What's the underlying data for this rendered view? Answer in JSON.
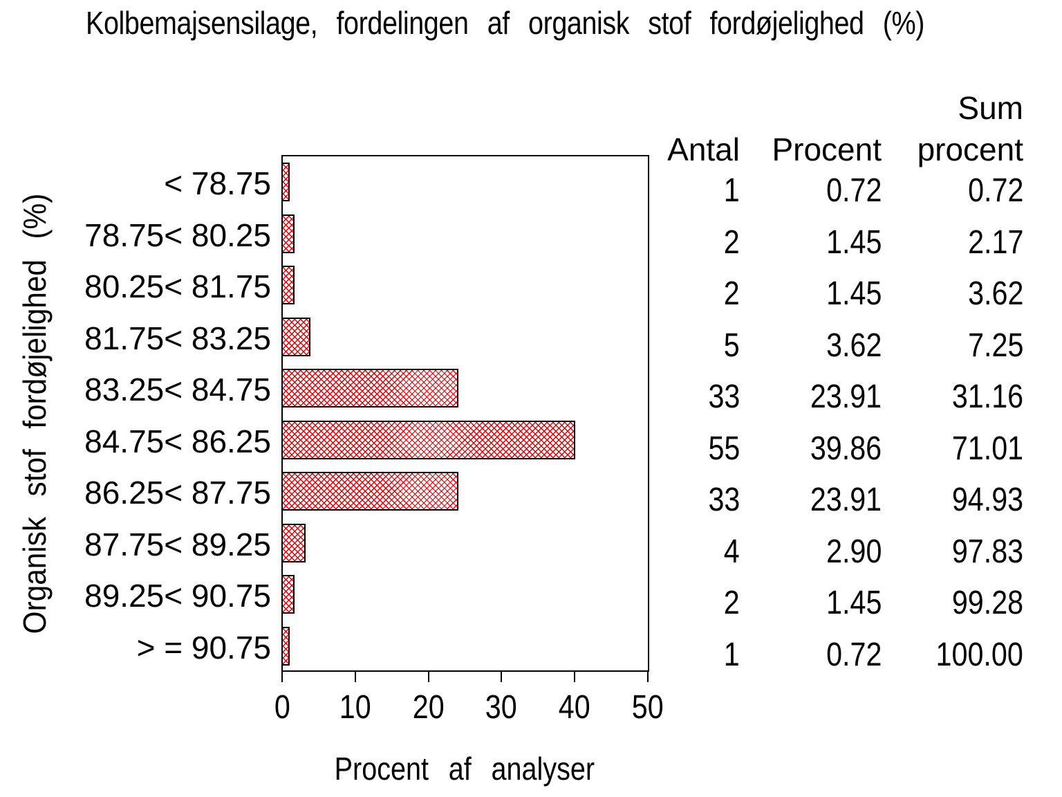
{
  "title": "Kolbemajsensilage, fordelingen af organisk stof fordøjelighed (%)",
  "y_axis_label": "Organisk stof fordøjelighed (%)",
  "x_axis_label": "Procent af analyser",
  "x_ticks": [
    "0",
    "10",
    "20",
    "30",
    "40",
    "50"
  ],
  "table": {
    "headers": {
      "antal": "Antal",
      "procent": "Procent",
      "sum_line1": "Sum",
      "sum_line2": "procent"
    },
    "rows": [
      {
        "antal": "1",
        "procent": "0.72",
        "sum": "0.72"
      },
      {
        "antal": "2",
        "procent": "1.45",
        "sum": "2.17"
      },
      {
        "antal": "2",
        "procent": "1.45",
        "sum": "3.62"
      },
      {
        "antal": "5",
        "procent": "3.62",
        "sum": "7.25"
      },
      {
        "antal": "33",
        "procent": "23.91",
        "sum": "31.16"
      },
      {
        "antal": "55",
        "procent": "39.86",
        "sum": "71.01"
      },
      {
        "antal": "33",
        "procent": "23.91",
        "sum": "94.93"
      },
      {
        "antal": "4",
        "procent": "2.90",
        "sum": "97.83"
      },
      {
        "antal": "2",
        "procent": "1.45",
        "sum": "99.28"
      },
      {
        "antal": "1",
        "procent": "0.72",
        "sum": "100.00"
      }
    ]
  },
  "colors": {
    "bar_fill": "#e00000",
    "bar_border": "#000000",
    "axis": "#000000",
    "text": "#000000",
    "background": "#ffffff"
  },
  "chart_data": {
    "type": "bar",
    "orientation": "horizontal",
    "title": "Kolbemajsensilage, fordelingen af organisk stof fordøjelighed (%)",
    "xlabel": "Procent af analyser",
    "ylabel": "Organisk stof fordøjelighed (%)",
    "xlim": [
      0,
      50
    ],
    "x_tick_values": [
      0,
      10,
      20,
      30,
      40,
      50
    ],
    "grid": false,
    "legend": false,
    "bar_pattern": "red diagonal crosshatch with black outline",
    "categories": [
      "< 78.75",
      "78.75< 80.25",
      "80.25< 81.75",
      "81.75< 83.25",
      "83.25< 84.75",
      "84.75< 86.25",
      "86.25< 87.75",
      "87.75< 89.25",
      "89.25< 90.75",
      "> = 90.75"
    ],
    "bar_series_name": "Procent",
    "series": [
      {
        "name": "Antal",
        "values": [
          1,
          2,
          2,
          5,
          33,
          55,
          33,
          4,
          2,
          1
        ]
      },
      {
        "name": "Procent",
        "values": [
          0.72,
          1.45,
          1.45,
          3.62,
          23.91,
          39.86,
          23.91,
          2.9,
          1.45,
          0.72
        ]
      },
      {
        "name": "Sum procent",
        "values": [
          0.72,
          2.17,
          3.62,
          7.25,
          31.16,
          71.01,
          94.93,
          97.83,
          99.28,
          100.0
        ]
      }
    ]
  }
}
